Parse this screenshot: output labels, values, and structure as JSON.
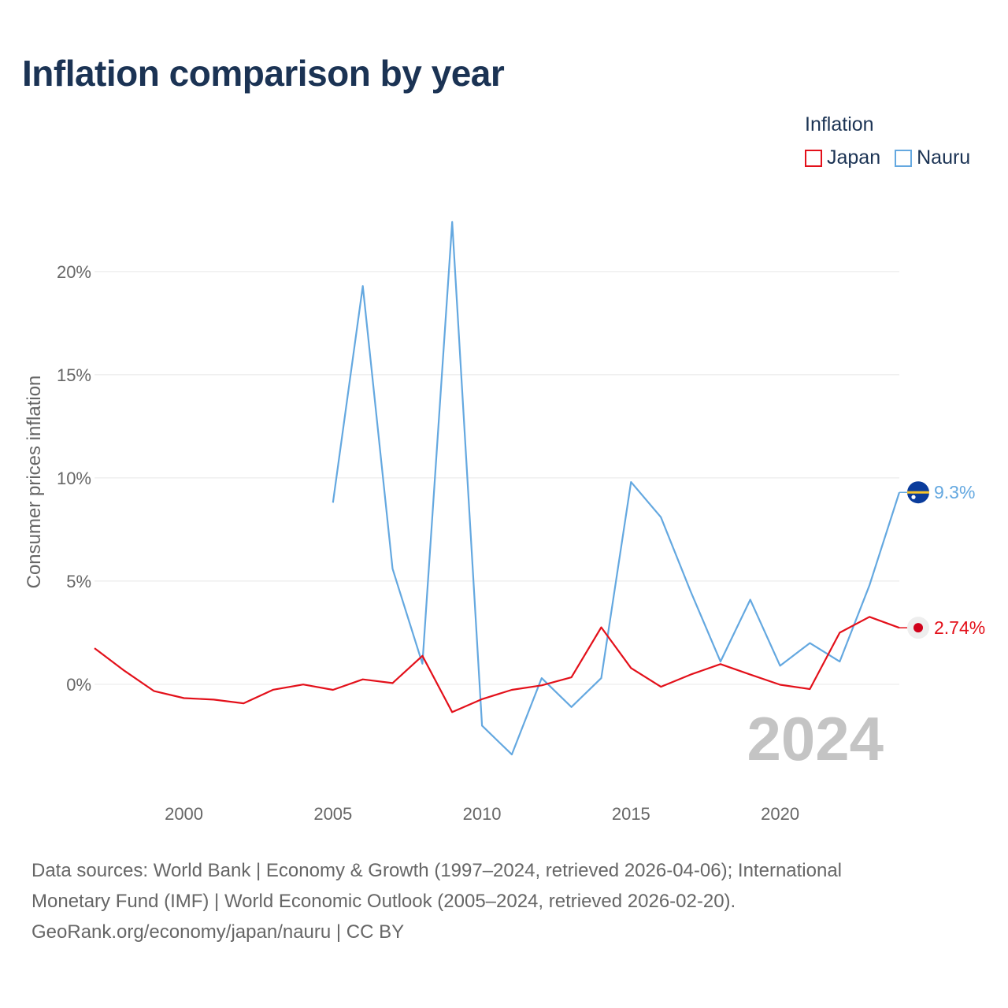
{
  "title": "Inflation comparison by year",
  "legend": {
    "title": "Inflation",
    "items": [
      {
        "label": "Japan",
        "color": "#e3101a"
      },
      {
        "label": "Nauru",
        "color": "#64a8e0"
      }
    ]
  },
  "chart_data": {
    "type": "line",
    "title": "Inflation comparison by year",
    "xlabel": "",
    "ylabel": "Consumer prices inflation",
    "xlim": [
      1997,
      2024
    ],
    "ylim": [
      -5,
      24
    ],
    "x_ticks": [
      2000,
      2005,
      2010,
      2015,
      2020
    ],
    "x_tick_labels": [
      "2000",
      "2005",
      "2010",
      "2015",
      "2020"
    ],
    "y_ticks": [
      0,
      5,
      10,
      15,
      20
    ],
    "y_tick_labels": [
      "0%",
      "5%",
      "10%",
      "15%",
      "20%"
    ],
    "grid": true,
    "year_label": "2024",
    "series": [
      {
        "name": "Japan",
        "color": "#e3101a",
        "end_label": "2.74%",
        "x": [
          1997,
          1998,
          1999,
          2000,
          2001,
          2002,
          2003,
          2004,
          2005,
          2006,
          2007,
          2008,
          2009,
          2010,
          2011,
          2012,
          2013,
          2014,
          2015,
          2016,
          2017,
          2018,
          2019,
          2020,
          2021,
          2022,
          2023,
          2024
        ],
        "values": [
          1.75,
          0.66,
          -0.33,
          -0.67,
          -0.74,
          -0.92,
          -0.26,
          -0.01,
          -0.27,
          0.24,
          0.06,
          1.38,
          -1.35,
          -0.72,
          -0.27,
          -0.05,
          0.34,
          2.76,
          0.79,
          -0.12,
          0.47,
          0.98,
          0.47,
          -0.02,
          -0.23,
          2.5,
          3.27,
          2.74
        ]
      },
      {
        "name": "Nauru",
        "color": "#64a8e0",
        "end_label": "9.3%",
        "x": [
          2005,
          2006,
          2007,
          2008,
          2009,
          2010,
          2011,
          2012,
          2013,
          2014,
          2015,
          2016,
          2017,
          2018,
          2019,
          2020,
          2021,
          2022,
          2023,
          2024
        ],
        "values": [
          8.8,
          19.3,
          5.6,
          1.0,
          22.4,
          -2.0,
          -3.4,
          0.3,
          -1.1,
          0.3,
          9.8,
          8.1,
          4.5,
          1.1,
          4.1,
          0.9,
          2.0,
          1.1,
          4.8,
          9.3
        ]
      }
    ]
  },
  "footer": {
    "line1": "Data sources: World Bank | Economy & Growth (1997–2024, retrieved 2026-04-06); International",
    "line2": "Monetary Fund (IMF) | World Economic Outlook (2005–2024, retrieved 2026-02-20).",
    "line3": "GeoRank.org/economy/japan/nauru | CC BY"
  }
}
